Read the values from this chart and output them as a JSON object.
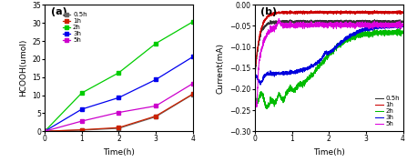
{
  "panel_a": {
    "title": "(a)",
    "xlabel": "Time(h)",
    "ylabel": "HCOOH(umol)",
    "xlim": [
      0,
      4
    ],
    "ylim": [
      0,
      35
    ],
    "yticks": [
      0,
      5,
      10,
      15,
      20,
      25,
      30,
      35
    ],
    "xticks": [
      0,
      1,
      2,
      3,
      4
    ],
    "series": [
      {
        "label": "0.5h",
        "color": "#666666",
        "marker": "s",
        "markersize": 3.5,
        "x": [
          0,
          1,
          2,
          3,
          4
        ],
        "y": [
          0,
          0.3,
          0.8,
          4.0,
          10.2
        ]
      },
      {
        "label": "1h",
        "color": "#cc2200",
        "marker": "s",
        "markersize": 3.5,
        "x": [
          0,
          1,
          2,
          3,
          4
        ],
        "y": [
          0,
          0.4,
          1.0,
          4.2,
          10.3
        ]
      },
      {
        "label": "2h",
        "color": "#00cc00",
        "marker": "s",
        "markersize": 3.5,
        "x": [
          0,
          1,
          2,
          3,
          4
        ],
        "y": [
          0,
          10.6,
          16.2,
          24.3,
          30.3
        ]
      },
      {
        "label": "3h",
        "color": "#0000ee",
        "marker": "s",
        "markersize": 3.5,
        "x": [
          0,
          1,
          2,
          3,
          4
        ],
        "y": [
          0,
          6.1,
          9.3,
          14.3,
          20.6
        ]
      },
      {
        "label": "5h",
        "color": "#cc00cc",
        "marker": "s",
        "markersize": 3.5,
        "x": [
          0,
          1,
          2,
          3,
          4
        ],
        "y": [
          0,
          2.8,
          5.2,
          7.0,
          13.2
        ]
      }
    ]
  },
  "panel_b": {
    "title": "(b)",
    "xlabel": "Time(h)",
    "ylabel": "Current(mA)",
    "xlim": [
      0,
      4
    ],
    "ylim": [
      -0.3,
      0.0
    ],
    "yticks": [
      0.0,
      -0.05,
      -0.1,
      -0.15,
      -0.2,
      -0.25,
      -0.3
    ],
    "xticks": [
      0,
      1,
      2,
      3,
      4
    ],
    "series": [
      {
        "label": "0.5h",
        "color": "#333333",
        "profile": "black"
      },
      {
        "label": "1h",
        "color": "#cc0000",
        "profile": "red"
      },
      {
        "label": "2h",
        "color": "#00bb00",
        "profile": "green"
      },
      {
        "label": "3h",
        "color": "#0000dd",
        "profile": "blue"
      },
      {
        "label": "5h",
        "color": "#dd00dd",
        "profile": "magenta"
      }
    ]
  }
}
